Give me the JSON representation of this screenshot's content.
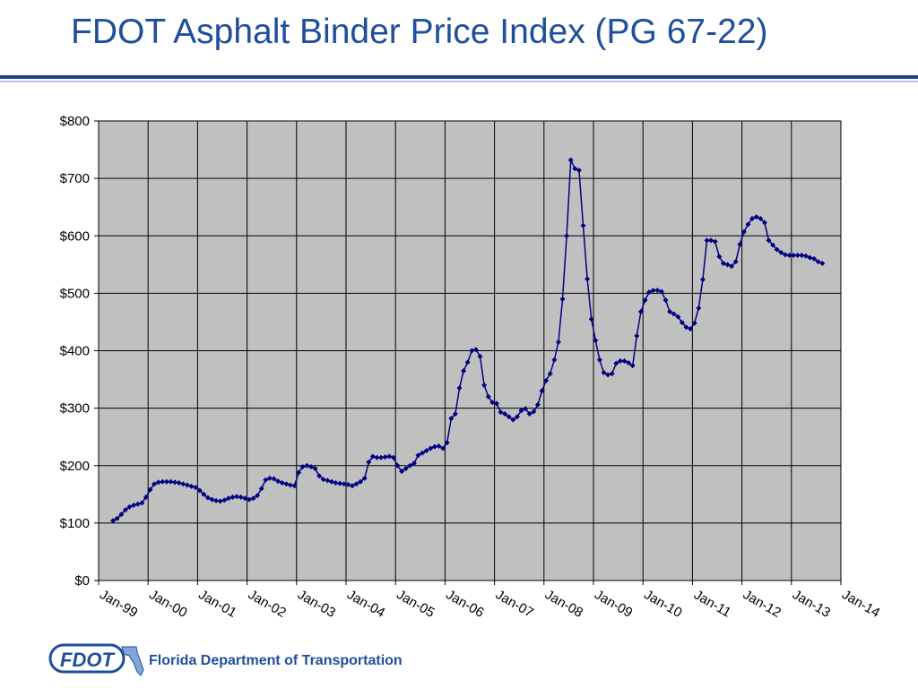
{
  "slide": {
    "title": "FDOT Asphalt Binder Price Index (PG 67-22)",
    "footer_org": "Florida Department of Transportation",
    "logo_text": "FDOT"
  },
  "colors": {
    "title": "#1f4e9c",
    "series": "#000080",
    "plot_bg": "#c0c0c0",
    "footer": "#1f4e9c"
  },
  "chart_data": {
    "type": "line",
    "title": "",
    "xlabel": "",
    "ylabel": "",
    "ylim": [
      0,
      800
    ],
    "y_ticks": [
      0,
      100,
      200,
      300,
      400,
      500,
      600,
      700,
      800
    ],
    "y_tick_labels": [
      "$0",
      "$100",
      "$200",
      "$300",
      "$400",
      "$500",
      "$600",
      "$700",
      "$800"
    ],
    "x_ticks": [
      "Jan-99",
      "Jan-00",
      "Jan-01",
      "Jan-02",
      "Jan-03",
      "Jan-04",
      "Jan-05",
      "Jan-06",
      "Jan-07",
      "Jan-08",
      "Jan-09",
      "Jan-10",
      "Jan-11",
      "Jan-12",
      "Jan-13",
      "Jan-14"
    ],
    "grid": true,
    "legend": "none",
    "x_start": "1999-04",
    "x_step": "1 month",
    "series": [
      {
        "name": "",
        "values": [
          104,
          108,
          115,
          123,
          128,
          131,
          133,
          135,
          145,
          158,
          168,
          171,
          172,
          172,
          172,
          171,
          170,
          168,
          166,
          164,
          162,
          157,
          150,
          144,
          141,
          139,
          138,
          140,
          143,
          145,
          146,
          145,
          143,
          141,
          143,
          148,
          160,
          175,
          178,
          177,
          173,
          170,
          168,
          166,
          165,
          188,
          198,
          200,
          198,
          195,
          182,
          176,
          174,
          172,
          170,
          169,
          168,
          167,
          165,
          168,
          172,
          178,
          206,
          216,
          214,
          214,
          215,
          216,
          214,
          200,
          190,
          195,
          200,
          204,
          218,
          222,
          226,
          230,
          233,
          234,
          230,
          240,
          282,
          290,
          335,
          365,
          380,
          400,
          402,
          390,
          340,
          320,
          310,
          308,
          293,
          290,
          285,
          280,
          285,
          296,
          299,
          290,
          294,
          306,
          330,
          348,
          360,
          384,
          415,
          490,
          600,
          732,
          717,
          714,
          618,
          525,
          455,
          418,
          384,
          362,
          358,
          360,
          378,
          382,
          382,
          379,
          374,
          426,
          468,
          488,
          502,
          505,
          505,
          503,
          488,
          468,
          464,
          459,
          449,
          441,
          438,
          448,
          474,
          524,
          592,
          592,
          590,
          564,
          552,
          550,
          547,
          555,
          585,
          607,
          620,
          630,
          633,
          630,
          623,
          592,
          584,
          576,
          571,
          567,
          566,
          566,
          566,
          566,
          565,
          562,
          560,
          555,
          552
        ]
      }
    ]
  }
}
